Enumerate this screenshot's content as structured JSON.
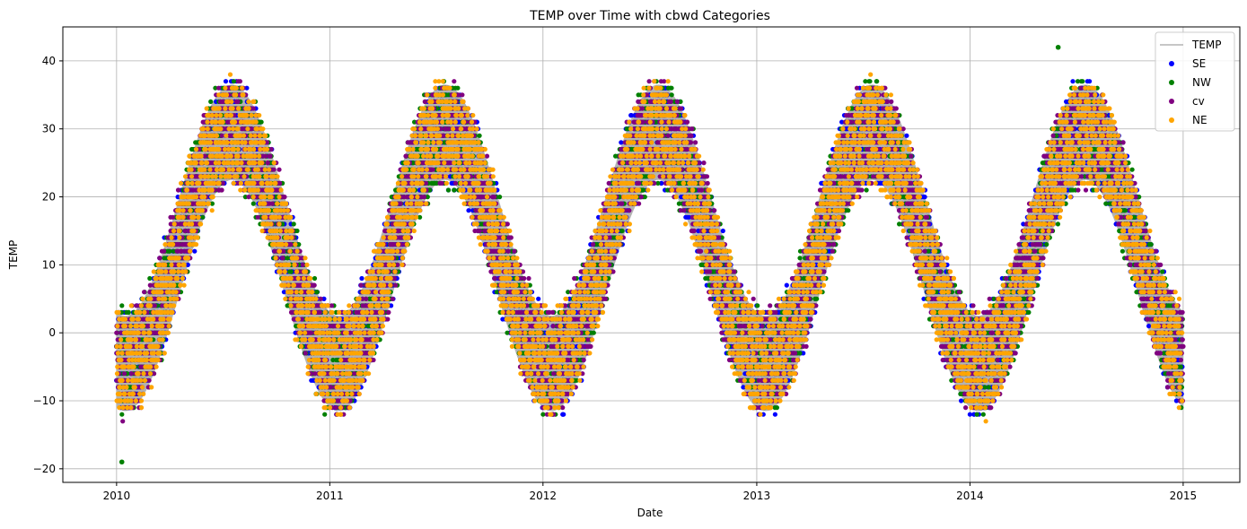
{
  "chart_data": {
    "type": "scatter",
    "title": "TEMP over Time with cbwd Categories",
    "xlabel": "Date",
    "ylabel": "TEMP",
    "xlim": [
      "2009-10-01",
      "2015-04-08"
    ],
    "ylim": [
      -22,
      45
    ],
    "x_ticks": [
      "2010",
      "2011",
      "2012",
      "2013",
      "2014",
      "2015"
    ],
    "y_ticks": [
      -20,
      -10,
      0,
      10,
      20,
      30,
      40
    ],
    "grid": true,
    "legend_position": "top-right",
    "line_series": {
      "name": "TEMP",
      "color": "#b3b3b3",
      "description_points": {
        "x": [
          "2010-01-01",
          "2010-07-01",
          "2011-01-15",
          "2011-07-10",
          "2012-01-20",
          "2012-07-10",
          "2013-01-10",
          "2013-07-10",
          "2014-01-15",
          "2014-07-10",
          "2015-01-01"
        ],
        "y": [
          -6,
          28,
          -5,
          27,
          -5,
          27,
          -8,
          27,
          -2,
          28,
          -2
        ]
      }
    },
    "seasonal_model": {
      "mean": 12.5,
      "amplitude": 17,
      "peak_date": "mid-July",
      "daily_spread": 14
    },
    "series": [
      {
        "name": "SE",
        "color": "#0000ff",
        "marker": "circle"
      },
      {
        "name": "NW",
        "color": "#008000",
        "marker": "circle"
      },
      {
        "name": "cv",
        "color": "#800080",
        "marker": "circle"
      },
      {
        "name": "NE",
        "color": "#ffa500",
        "marker": "circle"
      }
    ],
    "extremes": {
      "max": {
        "x": "2014-06-01",
        "y": 42,
        "series": "NW"
      },
      "min": {
        "x": "2010-01-10",
        "y": -19,
        "series": "NW"
      }
    }
  }
}
